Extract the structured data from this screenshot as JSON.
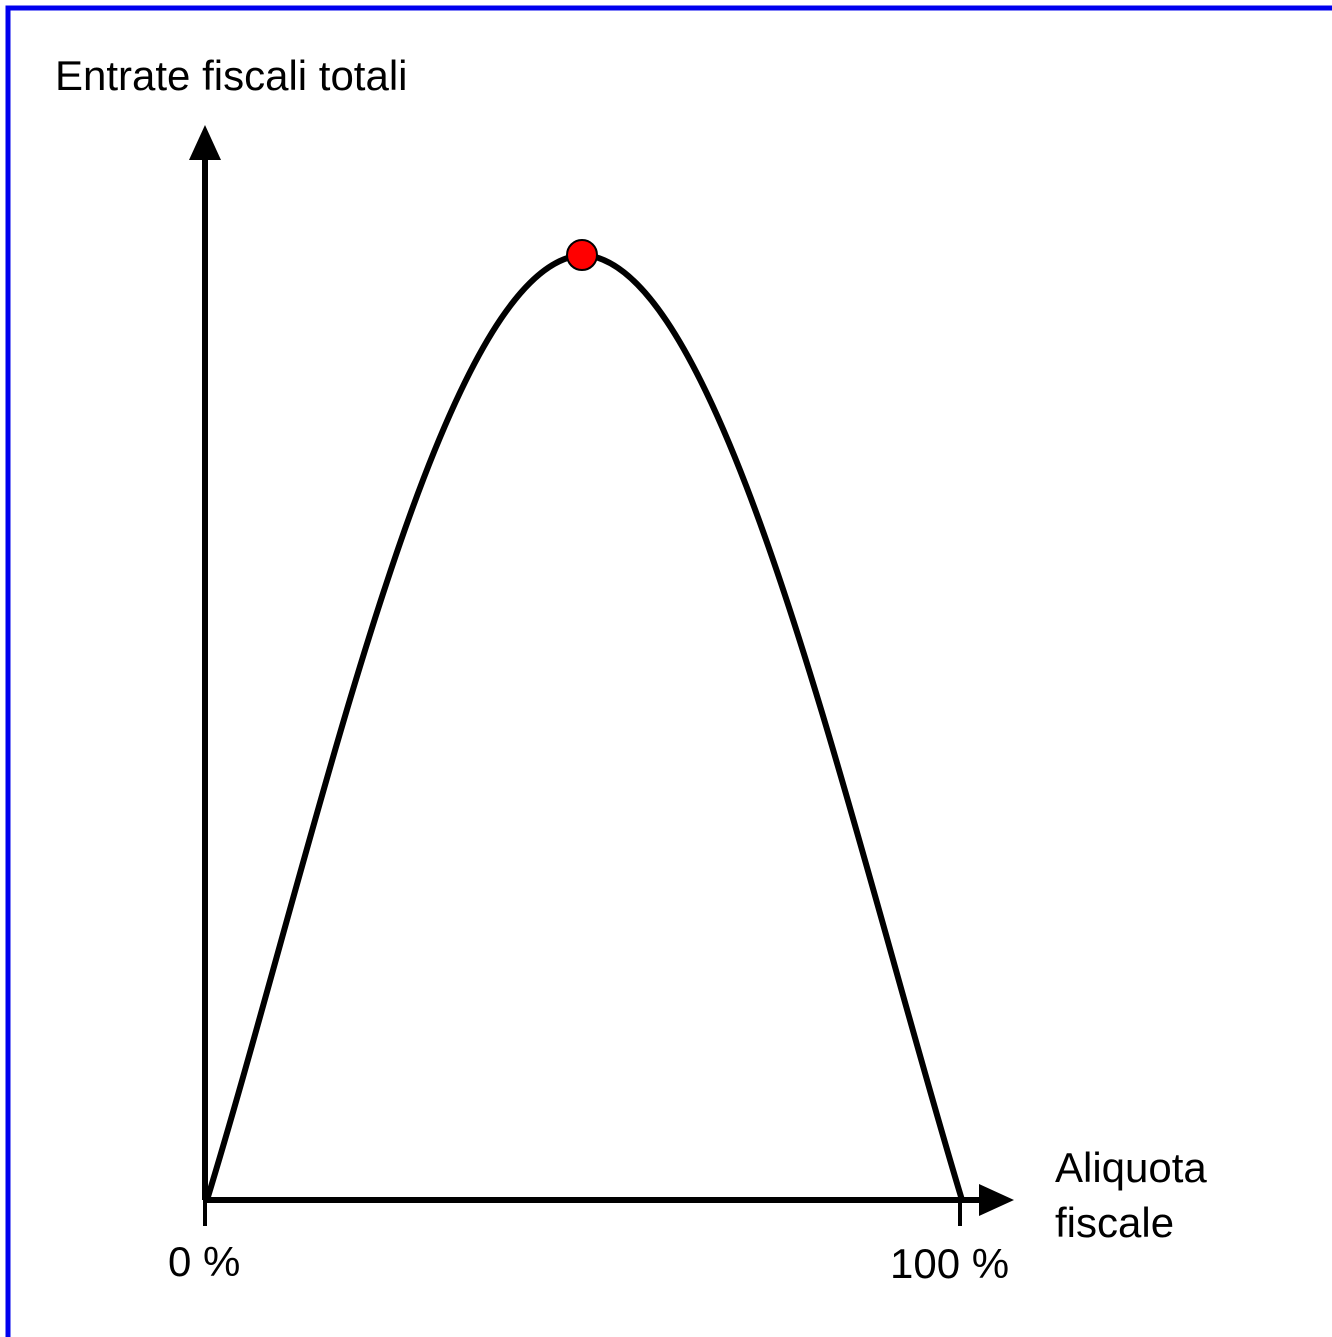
{
  "y_axis": {
    "label": "Entrate fiscali totali"
  },
  "x_axis": {
    "label_lines": [
      "Aliquota",
      "fiscale"
    ],
    "tick_labels": [
      "0 %",
      "100 %"
    ]
  }
}
